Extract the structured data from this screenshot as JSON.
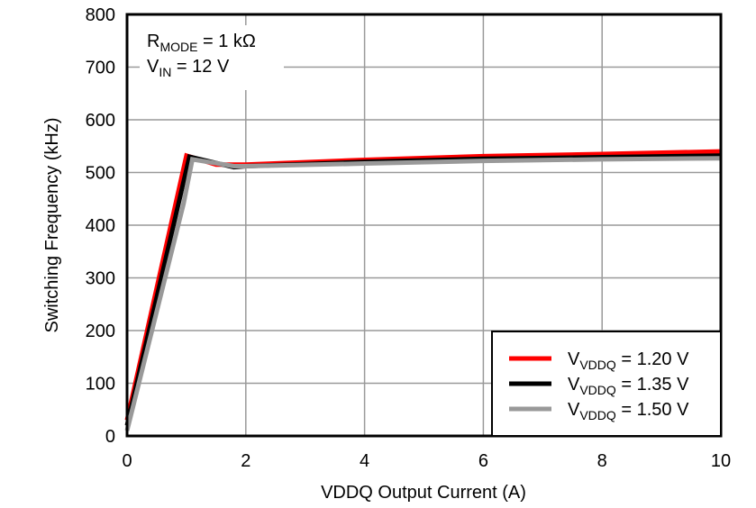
{
  "chart_data": {
    "type": "line",
    "xlabel": "VDDQ Output Current (A)",
    "ylabel": "Switching Frequency (kHz)",
    "xlim": [
      0,
      10
    ],
    "ylim": [
      0,
      800
    ],
    "xticks": [
      "0",
      "2",
      "4",
      "6",
      "8",
      "10"
    ],
    "yticks": [
      "0",
      "100",
      "200",
      "300",
      "400",
      "500",
      "600",
      "700",
      "800"
    ],
    "grid": true,
    "legend_placement": "bottom-right",
    "annotation": {
      "line1_main": "R",
      "line1_sub": "MODE",
      "line1_rest": " = 1 kΩ",
      "line2_main": "V",
      "line2_sub": "IN",
      "line2_rest": " = 12 V"
    },
    "series": [
      {
        "name_main": "V",
        "name_sub": "VDDQ",
        "name_rest": " = 1.20 V",
        "color": "#ff0000",
        "x": [
          0,
          1,
          1.5,
          2,
          4,
          6,
          8,
          10
        ],
        "y": [
          30,
          532,
          515,
          515,
          524,
          531,
          535,
          540
        ]
      },
      {
        "name_main": "V",
        "name_sub": "VDDQ",
        "name_rest": " = 1.35 V",
        "color": "#000000",
        "x": [
          0,
          1.05,
          1.8,
          2,
          4,
          6,
          8,
          10
        ],
        "y": [
          20,
          530,
          510,
          512,
          520,
          526,
          529,
          532
        ]
      },
      {
        "name_main": "V",
        "name_sub": "VDDQ",
        "name_rest": " = 1.50 V",
        "color": "#999999",
        "x": [
          0,
          0.95,
          1.1,
          1.8,
          2,
          4,
          6,
          8,
          10
        ],
        "y": [
          10,
          440,
          525,
          512,
          512,
          517,
          522,
          525,
          527
        ]
      }
    ]
  }
}
